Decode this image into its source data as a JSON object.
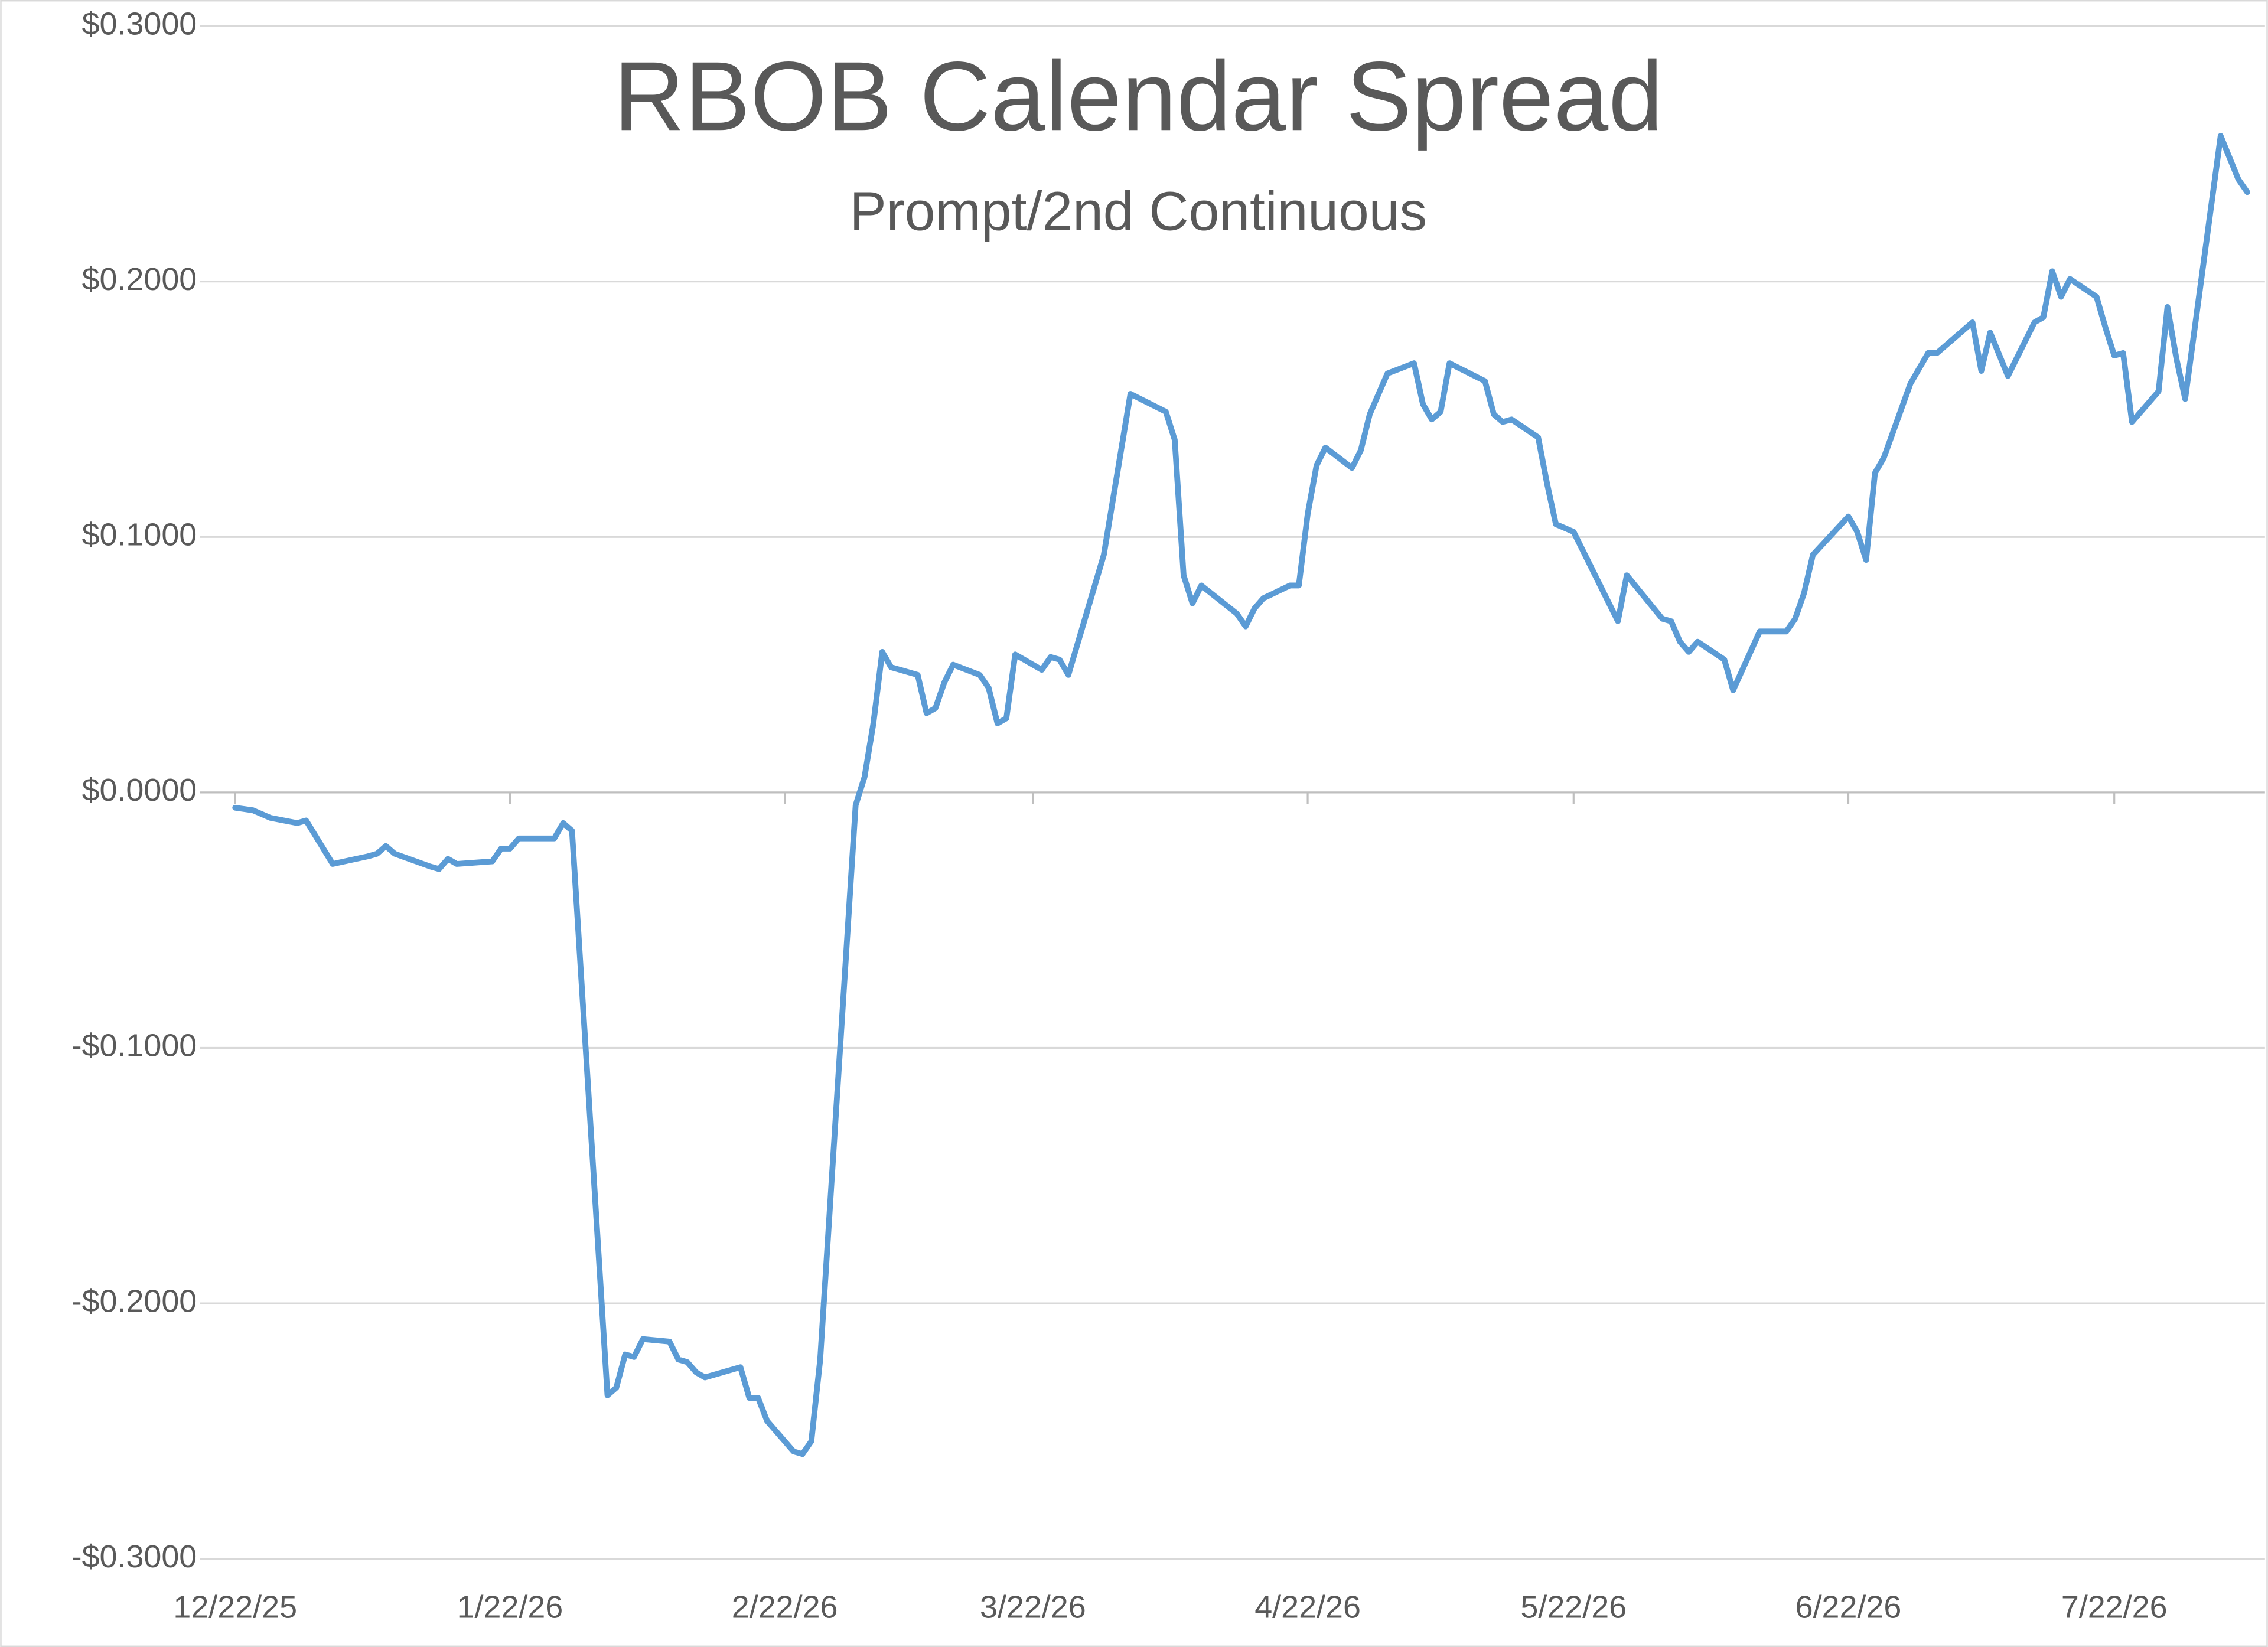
{
  "chart_data": {
    "type": "line",
    "title": "RBOB Calendar Spread",
    "subtitle": "Prompt/2nd Continuous",
    "color": "#5b9bd5",
    "grid": true,
    "xlim": [
      "12/18/25",
      "8/8/26"
    ],
    "xticks": [
      "12/22/25",
      "1/22/26",
      "2/22/26",
      "3/22/26",
      "4/22/26",
      "5/22/26",
      "6/22/26",
      "7/22/26"
    ],
    "ylim": [
      -0.3,
      0.3
    ],
    "yticks": [
      {
        "value": -0.3,
        "label": "-$0.3000"
      },
      {
        "value": -0.2,
        "label": "-$0.2000"
      },
      {
        "value": -0.1,
        "label": "-$0.1000"
      },
      {
        "value": 0,
        "label": "$0.0000"
      },
      {
        "value": 0.1,
        "label": "$0.1000"
      },
      {
        "value": 0.2,
        "label": "$0.2000"
      },
      {
        "value": 0.3,
        "label": "$0.3000"
      }
    ],
    "x": [
      "12/22/25",
      "12/24/25",
      "12/26/25",
      "12/29/25",
      "12/30/25",
      "1/2/26",
      "1/6/26",
      "1/7/26",
      "1/8/26",
      "1/9/26",
      "1/13/26",
      "1/14/26",
      "1/15/26",
      "1/16/26",
      "1/20/26",
      "1/21/26",
      "1/22/26",
      "1/23/26",
      "1/27/26",
      "1/28/26",
      "1/29/26",
      "2/2/26",
      "2/3/26",
      "2/4/26",
      "2/5/26",
      "2/6/26",
      "2/9/26",
      "2/10/26",
      "2/11/26",
      "2/12/26",
      "2/13/26",
      "2/17/26",
      "2/18/26",
      "2/19/26",
      "2/20/26",
      "2/23/26",
      "2/24/26",
      "2/25/26",
      "2/26/26",
      "3/2/26",
      "3/3/26",
      "3/4/26",
      "3/5/26",
      "3/6/26",
      "3/9/26",
      "3/10/26",
      "3/11/26",
      "3/12/26",
      "3/13/26",
      "3/16/26",
      "3/17/26",
      "3/18/26",
      "3/19/26",
      "3/20/26",
      "3/23/26",
      "3/24/26",
      "3/25/26",
      "3/26/26",
      "3/30/26",
      "4/2/26",
      "4/6/26",
      "4/7/26",
      "4/8/26",
      "4/9/26",
      "4/10/26",
      "4/14/26",
      "4/15/26",
      "4/16/26",
      "4/17/26",
      "4/20/26",
      "4/21/26",
      "4/22/26",
      "4/23/26",
      "4/24/26",
      "4/27/26",
      "4/28/26",
      "4/29/26",
      "5/1/26",
      "5/4/26",
      "5/5/26",
      "5/6/26",
      "5/7/26",
      "5/8/26",
      "5/12/26",
      "5/13/26",
      "5/14/26",
      "5/15/26",
      "5/18/26",
      "5/19/26",
      "5/20/26",
      "5/22/26",
      "5/27/26",
      "5/28/26",
      "6/1/26",
      "6/2/26",
      "6/3/26",
      "6/4/26",
      "6/5/26",
      "6/8/26",
      "6/9/26",
      "6/12/26",
      "6/15/26",
      "6/16/26",
      "6/17/26",
      "6/18/26",
      "6/22/26",
      "6/23/26",
      "6/24/26",
      "6/25/26",
      "6/26/26",
      "6/29/26",
      "7/1/26",
      "7/2/26",
      "7/6/26",
      "7/7/26",
      "7/8/26",
      "7/10/26",
      "7/13/26",
      "7/14/26",
      "7/15/26",
      "7/16/26",
      "7/17/26",
      "7/20/26",
      "7/21/26",
      "7/22/26",
      "7/23/26",
      "7/24/26",
      "7/27/26",
      "7/28/26",
      "7/29/26",
      "7/30/26",
      "8/3/26",
      "8/5/26",
      "8/6/26"
    ],
    "values": [
      -0.006,
      -0.007,
      -0.01,
      -0.012,
      -0.011,
      -0.028,
      -0.025,
      -0.024,
      -0.021,
      -0.024,
      -0.029,
      -0.03,
      -0.026,
      -0.028,
      -0.027,
      -0.022,
      -0.022,
      -0.018,
      -0.018,
      -0.012,
      -0.015,
      -0.236,
      -0.233,
      -0.22,
      -0.221,
      -0.214,
      -0.215,
      -0.222,
      -0.223,
      -0.227,
      -0.229,
      -0.225,
      -0.237,
      -0.237,
      -0.246,
      -0.258,
      -0.259,
      -0.254,
      -0.222,
      -0.005,
      0.006,
      0.027,
      0.055,
      0.049,
      0.046,
      0.031,
      0.033,
      0.043,
      0.05,
      0.046,
      0.041,
      0.027,
      0.029,
      0.054,
      0.048,
      0.053,
      0.052,
      0.046,
      0.093,
      0.156,
      0.149,
      0.138,
      0.085,
      0.074,
      0.081,
      0.07,
      0.065,
      0.072,
      0.076,
      0.081,
      0.081,
      0.109,
      0.128,
      0.135,
      0.127,
      0.134,
      0.148,
      0.164,
      0.168,
      0.152,
      0.146,
      0.149,
      0.168,
      0.161,
      0.148,
      0.145,
      0.146,
      0.139,
      0.121,
      0.105,
      0.102,
      0.067,
      0.085,
      0.068,
      0.067,
      0.059,
      0.055,
      0.059,
      0.052,
      0.04,
      0.063,
      0.063,
      0.068,
      0.078,
      0.093,
      0.108,
      0.102,
      0.091,
      0.125,
      0.131,
      0.16,
      0.172,
      0.172,
      0.184,
      0.165,
      0.18,
      0.163,
      0.184,
      0.186,
      0.204,
      0.194,
      0.201,
      0.194,
      0.182,
      0.171,
      0.172,
      0.145,
      0.157,
      0.19,
      0.17,
      0.154,
      0.257,
      0.24,
      0.235
    ]
  }
}
